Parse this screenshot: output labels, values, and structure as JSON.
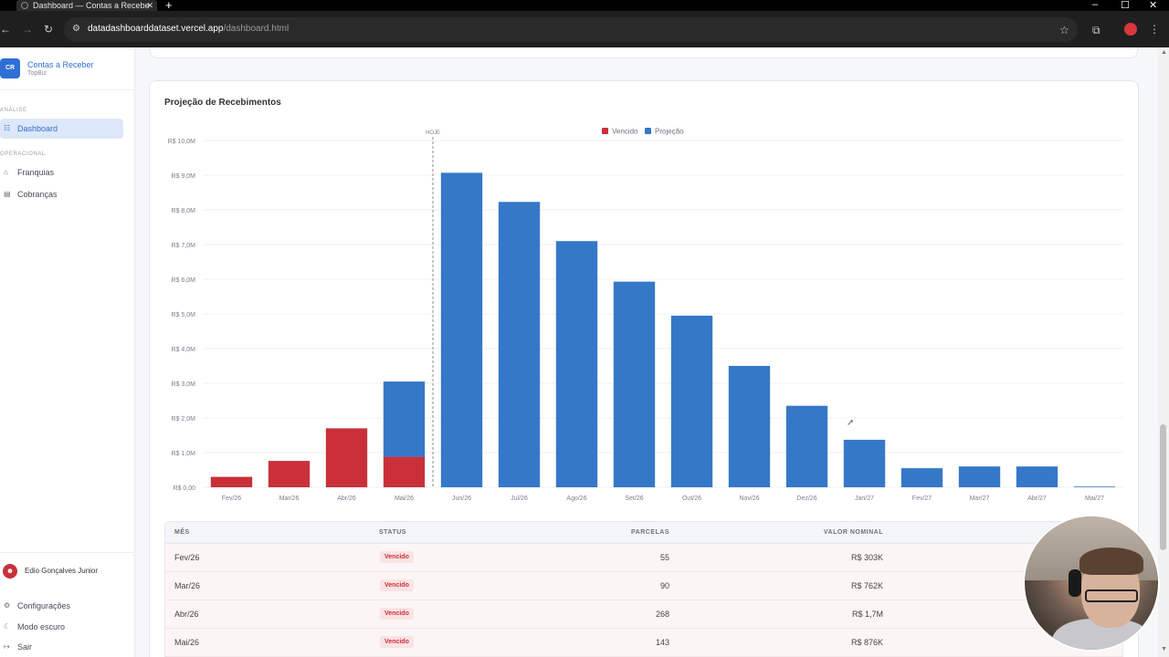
{
  "browser": {
    "tab_title": "Dashboard — Contas a Recebe",
    "url_domain": "datadashboarddataset.vercel.app",
    "url_path": "/dashboard.html"
  },
  "sidebar": {
    "logo_text": "CR",
    "brand_title": "Contas a Receber",
    "brand_subtitle": "TopBiz",
    "section_analysis": "ANÁLISE",
    "item_dashboard": "Dashboard",
    "section_operational": "OPERACIONAL",
    "item_franquias": "Franquias",
    "item_cobrancas": "Cobranças",
    "user_name": "Edio Gonçalves Junior",
    "footer_settings": "Configurações",
    "footer_dark_mode": "Modo escuro",
    "footer_logout": "Sair"
  },
  "card": {
    "title": "Projeção de Recebimentos"
  },
  "chart_data": {
    "type": "bar",
    "stacked": true,
    "categories": [
      "Fev/26",
      "Mar/26",
      "Abr/26",
      "Mai/26",
      "Jun/26",
      "Jul/26",
      "Ago/26",
      "Set/26",
      "Out/26",
      "Nov/26",
      "Dez/26",
      "Jan/27",
      "Fev/27",
      "Mar/27",
      "Abr/27",
      "Mai/27"
    ],
    "series": [
      {
        "name": "Vencido",
        "color": "#c9303a",
        "values": [
          0.3,
          0.76,
          1.7,
          0.88,
          0,
          0,
          0,
          0,
          0,
          0,
          0,
          0,
          0,
          0,
          0,
          0
        ]
      },
      {
        "name": "Projeção",
        "color": "#3578c8",
        "values": [
          0,
          0,
          0,
          2.17,
          9.07,
          8.23,
          7.1,
          5.93,
          4.95,
          3.5,
          2.35,
          1.37,
          0.55,
          0.6,
          0.6,
          0.02
        ]
      }
    ],
    "y_ticks": [
      "R$ 0,00",
      "R$ 1,0M",
      "R$ 2,0M",
      "R$ 3,0M",
      "R$ 4,0M",
      "R$ 5,0M",
      "R$ 6,0M",
      "R$ 7,0M",
      "R$ 8,0M",
      "R$ 9,0M",
      "R$ 10,0M"
    ],
    "ylim": [
      0,
      10
    ],
    "marker_label": "HOJE",
    "marker_after_category": "Mai/26",
    "legend_position": "top-center",
    "grid": true
  },
  "table": {
    "headers": {
      "month": "MÊS",
      "status": "STATUS",
      "parcels": "PARCELAS",
      "nominal": "VALOR NOMINAL"
    },
    "rows": [
      {
        "month": "Fev/26",
        "status": "Vencido",
        "parcels": "55",
        "nominal": "R$ 303K"
      },
      {
        "month": "Mar/26",
        "status": "Vencido",
        "parcels": "90",
        "nominal": "R$ 762K"
      },
      {
        "month": "Abr/26",
        "status": "Vencido",
        "parcels": "268",
        "nominal": "R$ 1,7M"
      },
      {
        "month": "Mai/26",
        "status": "Vencido",
        "parcels": "143",
        "nominal": "R$ 876K"
      }
    ]
  }
}
